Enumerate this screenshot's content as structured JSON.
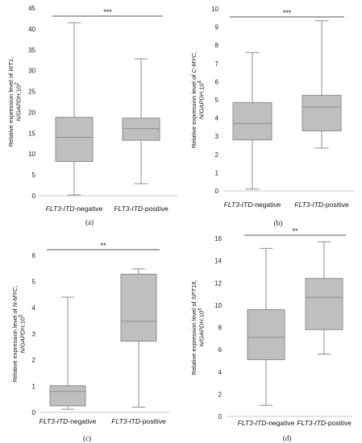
{
  "chart_data": [
    {
      "type": "box",
      "caption": "(a)",
      "ylabel_lines": [
        [
          {
            "t": "Relative expression level of "
          },
          {
            "t": "WT1",
            "i": true
          },
          {
            "t": ","
          }
        ],
        [
          {
            "t": "N/GAPDH",
            "i": true
          },
          {
            "t": ",10"
          },
          {
            "t": "2",
            "sup": true
          }
        ]
      ],
      "ylim": [
        0,
        45
      ],
      "yticks": [
        0,
        5,
        10,
        15,
        20,
        25,
        30,
        35,
        40,
        45
      ],
      "categories": [
        "FLT3-ITD-negative",
        "FLT3-ITD-positive"
      ],
      "boxes": [
        {
          "min": 0.2,
          "q1": 8.2,
          "median": 14.0,
          "q3": 18.8,
          "max": 41.5
        },
        {
          "min": 2.9,
          "q1": 13.3,
          "median": 16.1,
          "q3": 18.6,
          "max": 32.8
        }
      ],
      "significance": "***"
    },
    {
      "type": "box",
      "caption": "(b)",
      "ylabel_lines": [
        [
          {
            "t": "Relative expression level of "
          },
          {
            "t": "C-MYC",
            "i": true
          },
          {
            "t": ","
          }
        ],
        [
          {
            "t": "N/GAPDH",
            "i": true
          },
          {
            "t": ",10"
          },
          {
            "t": "5",
            "sup": true
          }
        ]
      ],
      "ylim": [
        0,
        10
      ],
      "yticks": [
        0,
        1,
        2,
        3,
        4,
        5,
        6,
        7,
        8,
        9,
        10
      ],
      "categories": [
        "FLT3-ITD-negative",
        "FLT3-ITD-positive"
      ],
      "boxes": [
        {
          "min": 0.1,
          "q1": 2.8,
          "median": 3.7,
          "q3": 4.85,
          "max": 7.6
        },
        {
          "min": 2.35,
          "q1": 3.3,
          "median": 4.6,
          "q3": 5.25,
          "max": 9.35
        }
      ],
      "significance": "***"
    },
    {
      "type": "box",
      "caption": "(c)",
      "ylabel_lines": [
        [
          {
            "t": "Relative expression level of "
          },
          {
            "t": "N-MYC",
            "i": true
          },
          {
            "t": ","
          }
        ],
        [
          {
            "t": "N/GAPDH",
            "i": true
          },
          {
            "t": ",10"
          },
          {
            "t": "5",
            "sup": true
          }
        ]
      ],
      "ylim": [
        0,
        6
      ],
      "yticks": [
        0,
        1,
        2,
        3,
        4,
        5,
        6
      ],
      "categories": [
        "FLT3-ITD-negative",
        "FLT3-ITD-positive"
      ],
      "boxes": [
        {
          "min": 0.12,
          "q1": 0.25,
          "median": 0.8,
          "q3": 1.02,
          "max": 4.4
        },
        {
          "min": 0.2,
          "q1": 2.72,
          "median": 3.48,
          "q3": 5.28,
          "max": 5.48
        }
      ],
      "significance": "**"
    },
    {
      "type": "box",
      "caption": "(d)",
      "ylabel_lines": [
        [
          {
            "t": "Relative expression level of "
          },
          {
            "t": "SPT16",
            "i": true
          },
          {
            "t": ","
          }
        ],
        [
          {
            "t": "N/GAPDH",
            "i": true
          },
          {
            "t": ",10"
          },
          {
            "t": "4",
            "sup": true
          }
        ]
      ],
      "ylim": [
        0,
        16
      ],
      "yticks": [
        0,
        2,
        4,
        6,
        8,
        10,
        12,
        14,
        16
      ],
      "categories": [
        "FLT3-ITD-negative",
        "FLT3-ITD-positive"
      ],
      "boxes": [
        {
          "min": 1.0,
          "q1": 5.1,
          "median": 7.1,
          "q3": 9.6,
          "max": 15.1
        },
        {
          "min": 5.6,
          "q1": 7.8,
          "median": 10.7,
          "q3": 12.4,
          "max": 15.7
        }
      ],
      "significance": "**"
    }
  ]
}
